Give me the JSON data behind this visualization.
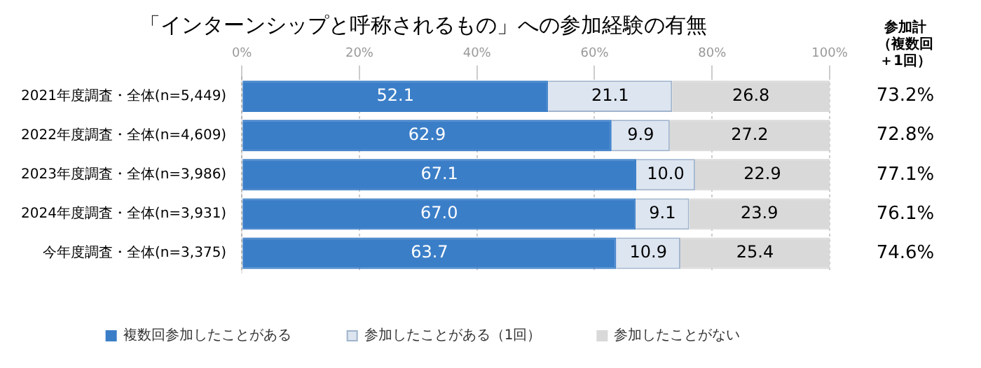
{
  "chart_data": {
    "type": "bar",
    "orientation": "horizontal",
    "stacked": true,
    "title": "「インターンシップと呼称されるもの」への参加経験の有無",
    "categories": [
      "2021年度調査・全体(n=5,449)",
      "2022年度調査・全体(n=4,609)",
      "2023年度調査・全体(n=3,986)",
      "2024年度調査・全体(n=3,931)",
      "今年度調査・全体(n=3,375)"
    ],
    "series": [
      {
        "name": "複数回参加したことがある",
        "color": "#3b7ec8",
        "values": [
          52.1,
          62.9,
          67.1,
          67.0,
          63.7
        ],
        "value_labels": [
          "52.1",
          "62.9",
          "67.1",
          "67.0",
          "63.7"
        ]
      },
      {
        "name": "参加したことがある（1回）",
        "color": "#dce5f0",
        "values": [
          21.1,
          9.9,
          10.0,
          9.1,
          10.9
        ],
        "value_labels": [
          "21.1",
          "9.9",
          "10.0",
          "9.1",
          "10.9"
        ]
      },
      {
        "name": "参加したことがない",
        "color": "#d9d9d9",
        "values": [
          26.8,
          27.2,
          22.9,
          23.9,
          25.4
        ],
        "value_labels": [
          "26.8",
          "27.2",
          "22.9",
          "23.9",
          "25.4"
        ]
      }
    ],
    "xlim": [
      0,
      100
    ],
    "xticks": [
      {
        "value": 0,
        "label": "0%"
      },
      {
        "value": 20,
        "label": "20%"
      },
      {
        "value": 40,
        "label": "40%"
      },
      {
        "value": 60,
        "label": "60%"
      },
      {
        "value": 80,
        "label": "80%"
      },
      {
        "value": 100,
        "label": "100%"
      }
    ],
    "annotations": [
      "参加計（複数回＋1回）",
      "73.2%",
      "72.8%",
      "77.1%",
      "76.1%",
      "74.6%"
    ],
    "grid": "x",
    "legend": "bottom"
  }
}
